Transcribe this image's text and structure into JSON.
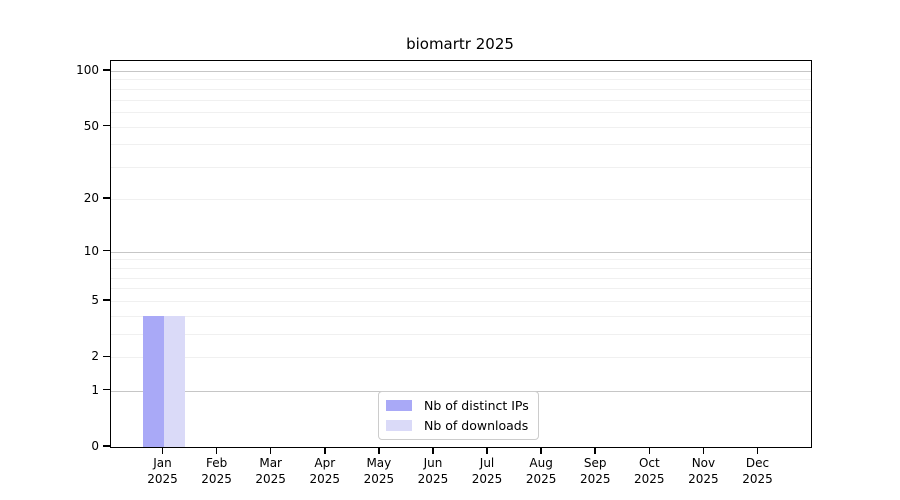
{
  "chart_data": {
    "type": "bar",
    "title": "biomartr 2025",
    "categories": [
      "Jan",
      "Feb",
      "Mar",
      "Apr",
      "May",
      "Jun",
      "Jul",
      "Aug",
      "Sep",
      "Oct",
      "Nov",
      "Dec"
    ],
    "x_year_label": "2025",
    "series": [
      {
        "name": "Nb of distinct IPs",
        "color": "#a9a9f7",
        "values": [
          4,
          0,
          0,
          0,
          0,
          0,
          0,
          0,
          0,
          0,
          0,
          0
        ]
      },
      {
        "name": "Nb of downloads",
        "color": "#dadaf8",
        "values": [
          4,
          0,
          0,
          0,
          0,
          0,
          0,
          0,
          0,
          0,
          0,
          0
        ]
      }
    ],
    "y_scale": "log1p",
    "y_axis_max": 113,
    "y_ticks": [
      100,
      50,
      20,
      10,
      5,
      2,
      1,
      0
    ],
    "grid_minor": [
      2,
      3,
      4,
      5,
      6,
      7,
      8,
      9,
      20,
      30,
      40,
      50,
      60,
      70,
      80,
      90
    ],
    "grid_major": [
      1,
      10,
      100
    ],
    "xlabel": "",
    "ylabel": "",
    "legend_position": "lower center",
    "colors": {
      "grid_minor": "#f0f0f0",
      "grid_major": "#c6c6c6",
      "axis": "#000000",
      "legend_border": "#cccccc"
    }
  }
}
